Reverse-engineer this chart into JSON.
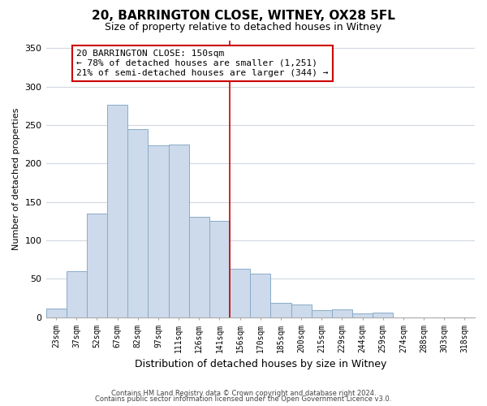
{
  "title": "20, BARRINGTON CLOSE, WITNEY, OX28 5FL",
  "subtitle": "Size of property relative to detached houses in Witney",
  "xlabel": "Distribution of detached houses by size in Witney",
  "ylabel": "Number of detached properties",
  "footnote1": "Contains HM Land Registry data © Crown copyright and database right 2024.",
  "footnote2": "Contains public sector information licensed under the Open Government Licence v3.0.",
  "bar_labels": [
    "23sqm",
    "37sqm",
    "52sqm",
    "67sqm",
    "82sqm",
    "97sqm",
    "111sqm",
    "126sqm",
    "141sqm",
    "156sqm",
    "170sqm",
    "185sqm",
    "200sqm",
    "215sqm",
    "229sqm",
    "244sqm",
    "259sqm",
    "274sqm",
    "288sqm",
    "303sqm",
    "318sqm"
  ],
  "bar_values": [
    11,
    60,
    135,
    277,
    245,
    224,
    225,
    131,
    125,
    63,
    57,
    19,
    17,
    9,
    10,
    5,
    6,
    0,
    0,
    0,
    0
  ],
  "bar_color": "#cddaeb",
  "bar_edge_color": "#8aaac8",
  "highlight_line_color": "#cc0000",
  "highlight_bar_index": 8,
  "annotation_title": "20 BARRINGTON CLOSE: 150sqm",
  "annotation_line1": "← 78% of detached houses are smaller (1,251)",
  "annotation_line2": "21% of semi-detached houses are larger (344) →",
  "annotation_box_color": "#ffffff",
  "annotation_box_edge": "#cc0000",
  "ylim": [
    0,
    360
  ],
  "yticks": [
    0,
    50,
    100,
    150,
    200,
    250,
    300,
    350
  ],
  "background_color": "#ffffff",
  "grid_color": "#d0d8e0"
}
